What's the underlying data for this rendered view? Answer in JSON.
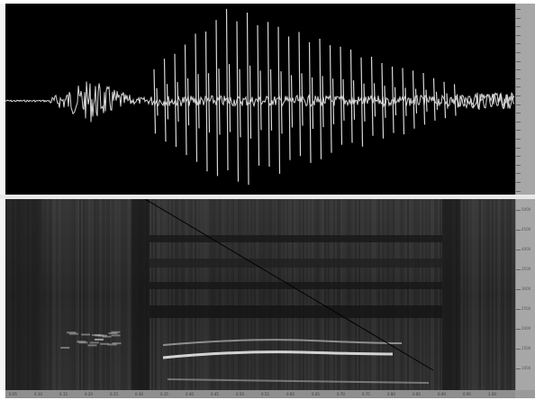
{
  "window": {
    "title": ""
  },
  "waveform": {
    "background": "#000000",
    "trace_color": "#d8d8d8"
  },
  "spectrogram": {
    "background": "#0b0b0b",
    "band_color": "#f0f0f0",
    "cursor_color": "#000000"
  },
  "freq_ruler": {
    "labels": [
      "5000",
      "4500",
      "4000",
      "3500",
      "3000",
      "2500",
      "2000",
      "1500",
      "1000"
    ]
  },
  "time_ruler": {
    "labels": [
      "0.05",
      "0.10",
      "0.15",
      "0.20",
      "0.25",
      "0.30",
      "0.35",
      "0.40",
      "0.45",
      "0.50",
      "0.55",
      "0.60",
      "0.65",
      "0.70",
      "0.75",
      "0.80",
      "0.85",
      "0.90",
      "0.95",
      "1.00"
    ]
  },
  "colors": {
    "ruler": "#a7a7a7",
    "divider": "#e8e8e8"
  }
}
